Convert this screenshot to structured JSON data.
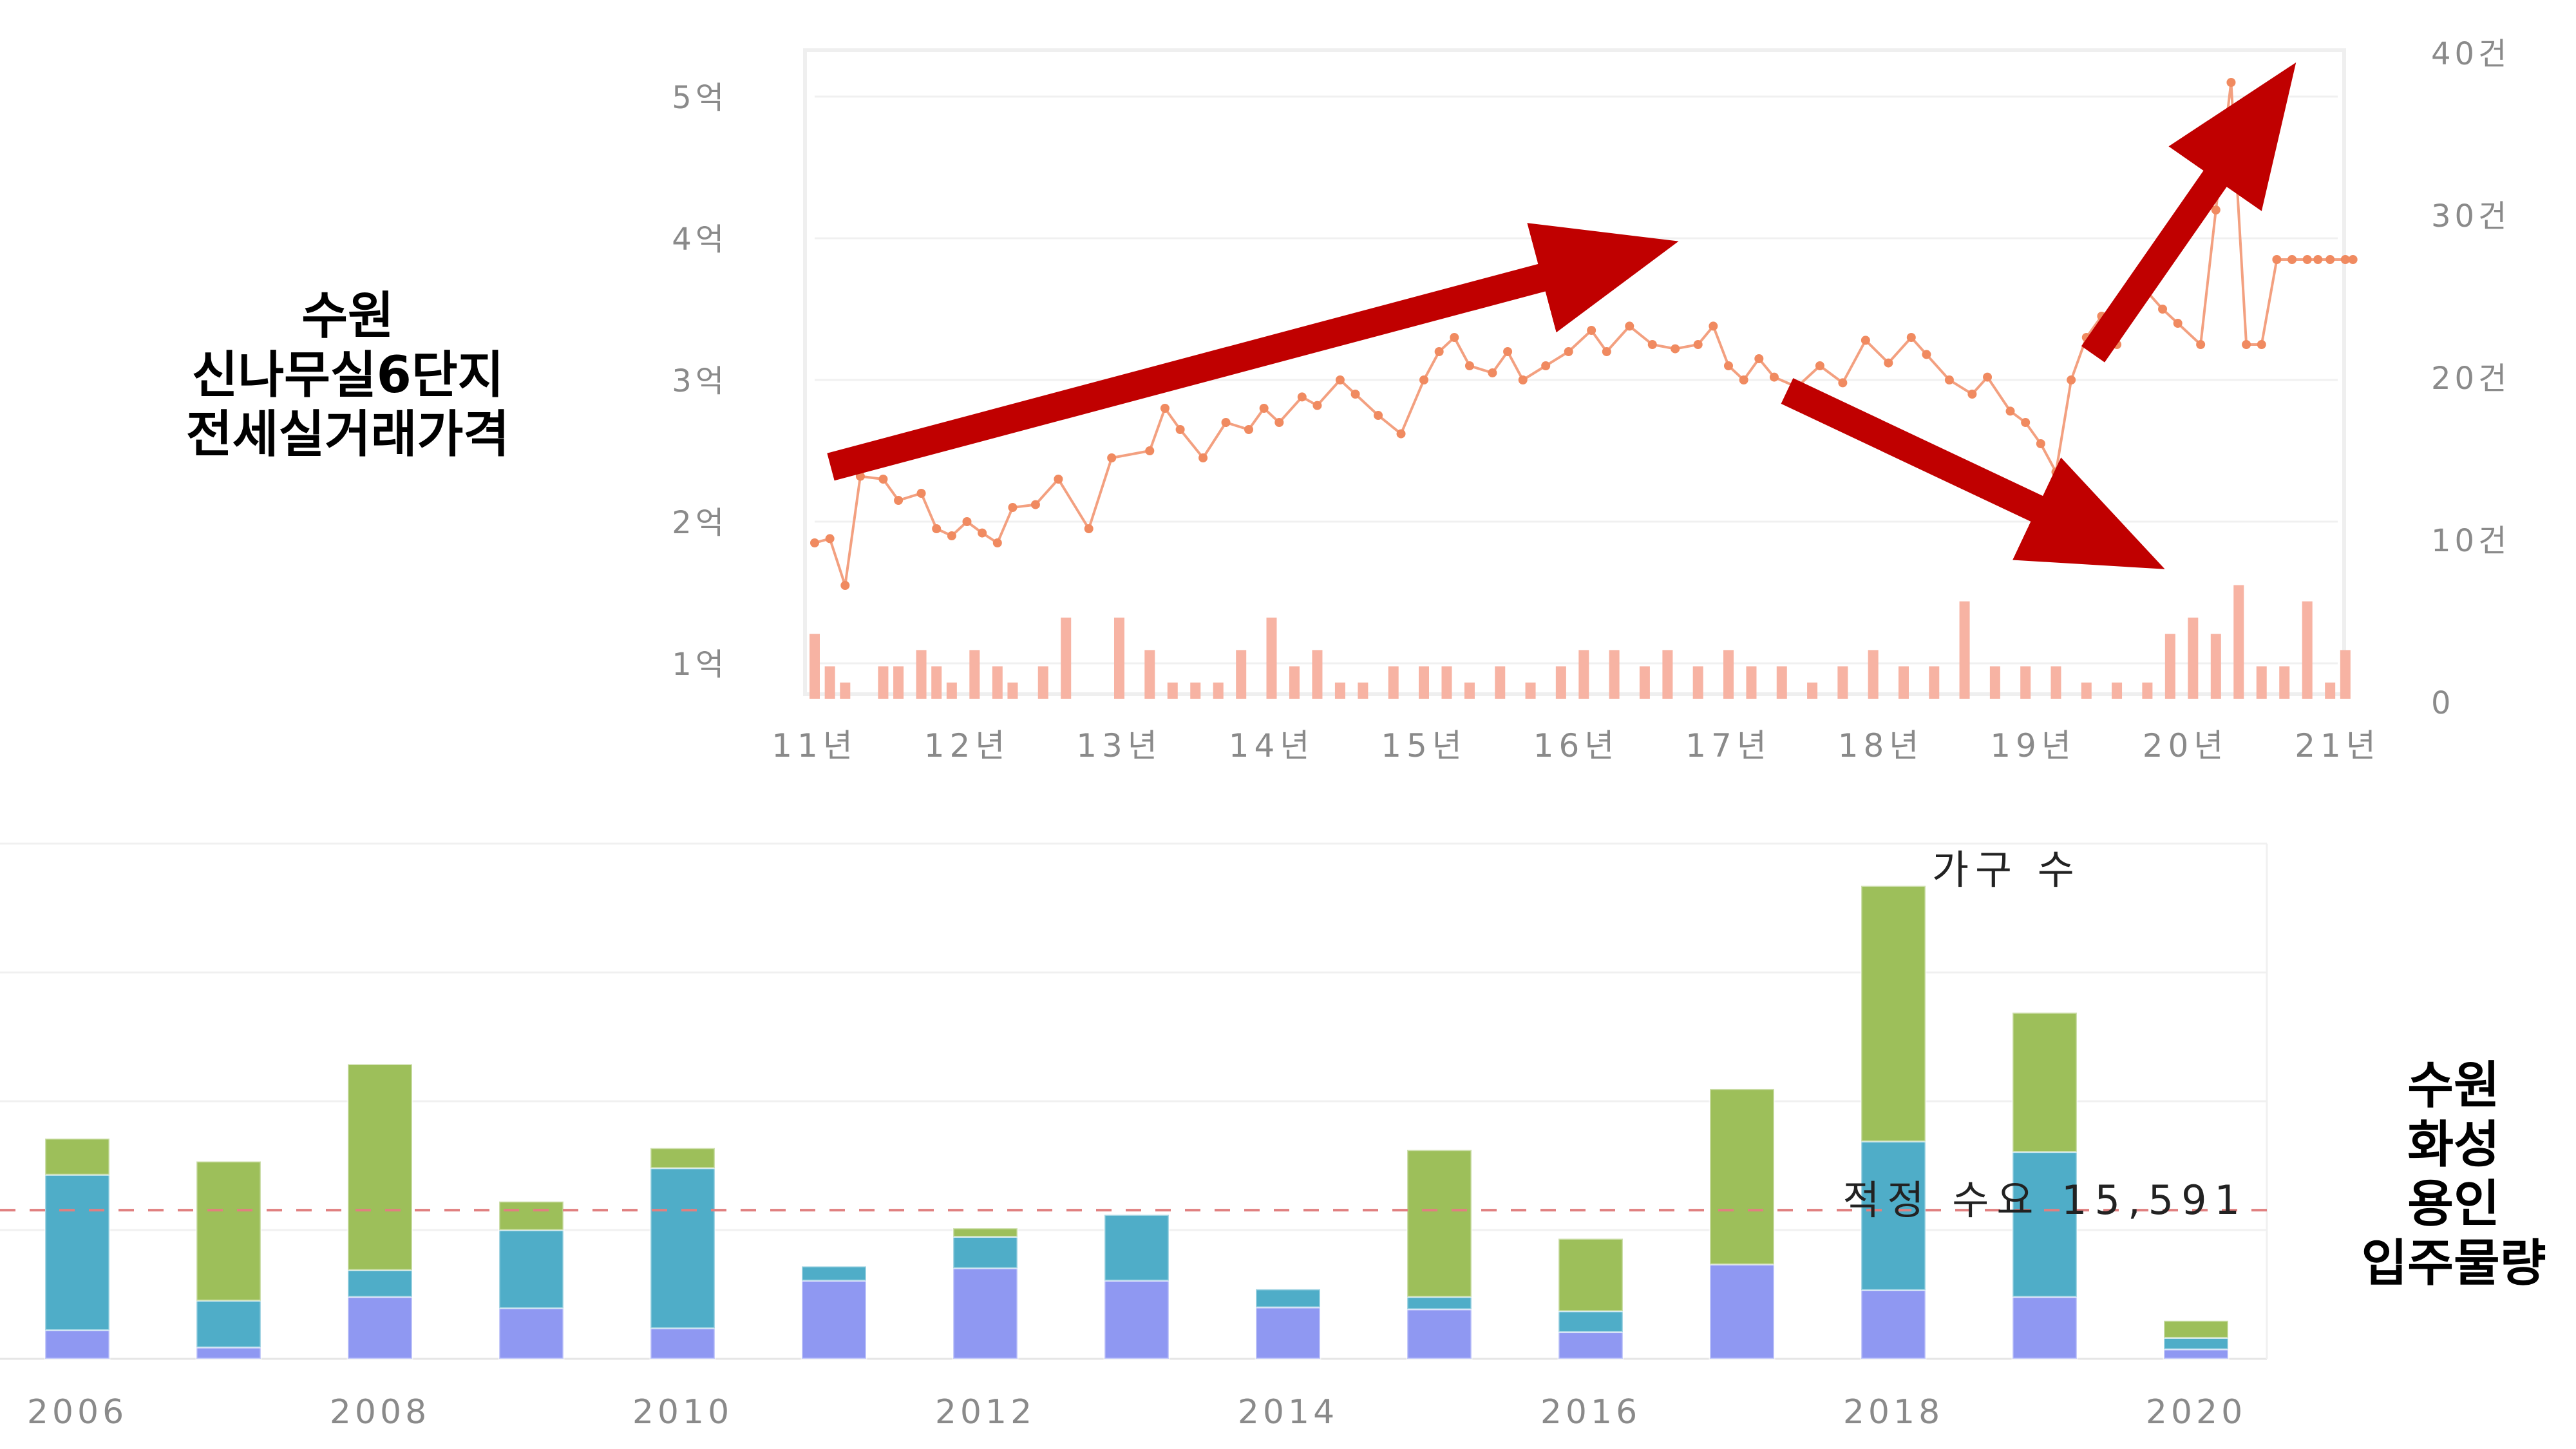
{
  "top_title": [
    "수원",
    "신나무실6단지",
    "전세실거래가격"
  ],
  "bottom_title": [
    "수원",
    "화성",
    "용인",
    "입주물량"
  ],
  "colors": {
    "price_line": "#f3a080",
    "volume_bar": "#f7b3a3",
    "arrow": "#c00000",
    "bar_green": "#9dbf5a",
    "bar_teal": "#4fadc8",
    "bar_blue": "#8f98f2",
    "demand_line": "#e08080"
  },
  "chart_data": [
    {
      "type": "line",
      "x_ticks": [
        "11년",
        "12년",
        "13년",
        "14년",
        "15년",
        "16년",
        "17년",
        "18년",
        "19년",
        "20년",
        "21년"
      ],
      "y_left_ticks": [
        "1억",
        "2억",
        "3억",
        "4억",
        "5억"
      ],
      "y_left_range": [
        1,
        5.4
      ],
      "y_right_ticks": [
        "0",
        "10건",
        "20건",
        "30건",
        "40건"
      ],
      "y_right_range": [
        0,
        40
      ],
      "x_range": [
        2011,
        2021.1
      ],
      "series": [
        {
          "kind": "price",
          "x": [
            2011.0,
            2011.1,
            2011.2,
            2011.3,
            2011.45,
            2011.55,
            2011.7,
            2011.8,
            2011.9,
            2012.0,
            2012.1,
            2012.2,
            2012.3,
            2012.45,
            2012.6,
            2012.8,
            2012.95,
            2013.2,
            2013.3,
            2013.4,
            2013.55,
            2013.7,
            2013.85,
            2013.95,
            2014.05,
            2014.2,
            2014.3,
            2014.45,
            2014.55,
            2014.7,
            2014.85,
            2015.0,
            2015.1,
            2015.2,
            2015.3,
            2015.45,
            2015.55,
            2015.65,
            2015.8,
            2015.95,
            2016.1,
            2016.2,
            2016.35,
            2016.5,
            2016.65,
            2016.8,
            2016.9,
            2017.0,
            2017.1,
            2017.2,
            2017.3,
            2017.45,
            2017.6,
            2017.75,
            2017.9,
            2018.05,
            2018.2,
            2018.3,
            2018.45,
            2018.6,
            2018.7,
            2018.85,
            2018.95,
            2019.05,
            2019.15,
            2019.25,
            2019.35,
            2019.45,
            2019.55,
            2019.65,
            2019.75,
            2019.85,
            2019.95,
            2020.1,
            2020.2,
            2020.3,
            2020.4,
            2020.5,
            2020.6,
            2020.7,
            2020.8,
            2020.87,
            2020.95,
            2021.05,
            2021.1
          ],
          "y": [
            1.85,
            1.88,
            1.55,
            2.32,
            2.3,
            2.15,
            2.2,
            1.95,
            1.9,
            2.0,
            1.92,
            1.85,
            2.1,
            2.12,
            2.3,
            1.95,
            2.45,
            2.5,
            2.8,
            2.65,
            2.45,
            2.7,
            2.65,
            2.8,
            2.7,
            2.88,
            2.82,
            3.0,
            2.9,
            2.75,
            2.62,
            3.0,
            3.2,
            3.3,
            3.1,
            3.05,
            3.2,
            3.0,
            3.1,
            3.2,
            3.35,
            3.2,
            3.38,
            3.25,
            3.22,
            3.25,
            3.38,
            3.1,
            3.0,
            3.15,
            3.02,
            2.95,
            3.1,
            2.98,
            3.28,
            3.12,
            3.3,
            3.18,
            3.0,
            2.9,
            3.02,
            2.78,
            2.7,
            2.55,
            2.35,
            3.0,
            3.3,
            3.45,
            3.25,
            3.5,
            3.62,
            3.5,
            3.4,
            3.25,
            4.2,
            5.1,
            3.25,
            3.25,
            3.85,
            3.85,
            3.85,
            3.85,
            3.85,
            3.85,
            3.85
          ]
        },
        {
          "kind": "volume",
          "x": [
            2011.0,
            2011.1,
            2011.2,
            2011.45,
            2011.55,
            2011.7,
            2011.8,
            2011.9,
            2012.05,
            2012.2,
            2012.3,
            2012.5,
            2012.65,
            2013.0,
            2013.2,
            2013.35,
            2013.5,
            2013.65,
            2013.8,
            2014.0,
            2014.15,
            2014.3,
            2014.45,
            2014.6,
            2014.8,
            2015.0,
            2015.15,
            2015.3,
            2015.5,
            2015.7,
            2015.9,
            2016.05,
            2016.25,
            2016.45,
            2016.6,
            2016.8,
            2017.0,
            2017.15,
            2017.35,
            2017.55,
            2017.75,
            2017.95,
            2018.15,
            2018.35,
            2018.55,
            2018.75,
            2018.95,
            2019.15,
            2019.35,
            2019.55,
            2019.75,
            2019.9,
            2020.05,
            2020.2,
            2020.35,
            2020.5,
            2020.65,
            2020.8,
            2020.95,
            2021.05
          ],
          "y": [
            4,
            2,
            1,
            2,
            2,
            3,
            2,
            1,
            3,
            2,
            1,
            2,
            5,
            5,
            3,
            1,
            1,
            1,
            3,
            5,
            2,
            3,
            1,
            1,
            2,
            2,
            2,
            1,
            2,
            1,
            2,
            3,
            3,
            2,
            3,
            2,
            3,
            2,
            2,
            1,
            2,
            3,
            2,
            2,
            6,
            2,
            2,
            2,
            1,
            1,
            1,
            4,
            5,
            4,
            7,
            2,
            2,
            6,
            1,
            3
          ]
        }
      ]
    },
    {
      "type": "bar",
      "categories": [
        "2006",
        "2007",
        "2008",
        "2009",
        "2010",
        "2011",
        "2012",
        "2013",
        "2014",
        "2015",
        "2016",
        "2017",
        "2018",
        "2019",
        "2020"
      ],
      "x_tick_labels": [
        "2006",
        "2008",
        "2010",
        "2012",
        "2014",
        "2016",
        "2018",
        "2020"
      ],
      "series": [
        {
          "color_key": "bar_blue",
          "values": [
            3000,
            1200,
            6500,
            5300,
            3200,
            8200,
            9500,
            8200,
            5400,
            5200,
            2800,
            9900,
            7200,
            6500,
            1000
          ]
        },
        {
          "color_key": "bar_teal",
          "values": [
            16300,
            4900,
            2800,
            8200,
            16800,
            1500,
            3300,
            6900,
            1900,
            1300,
            2200,
            0,
            15600,
            15200,
            1200
          ]
        },
        {
          "color_key": "bar_green",
          "values": [
            3800,
            14600,
            21600,
            3000,
            2100,
            0,
            900,
            0,
            0,
            15400,
            7600,
            18400,
            26800,
            14600,
            1800
          ]
        }
      ],
      "ylim": [
        0,
        52000
      ],
      "reference_line": {
        "label": "적정 수요 15,591",
        "value": 15591
      },
      "annotation": "가구 수"
    }
  ]
}
